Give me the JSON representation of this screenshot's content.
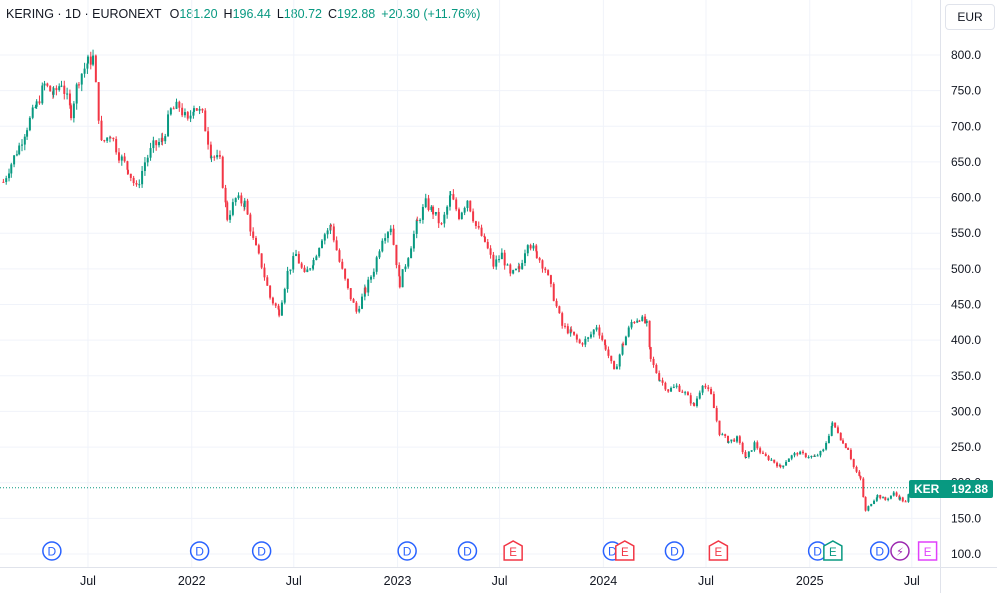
{
  "header": {
    "symbol": "KERING · 1D · EURONEXT",
    "open_label": "O",
    "open": "181.20",
    "high_label": "H",
    "high": "196.44",
    "low_label": "L",
    "low": "180.72",
    "close_label": "C",
    "close": "192.88",
    "change": "+20.30 (+11.76%)"
  },
  "currency": "EUR",
  "price_tag": {
    "symbol": "KER",
    "value": "192.88"
  },
  "colors": {
    "up": "#089981",
    "down": "#f23645",
    "dividend": "#2962ff",
    "earnings_past": "#f23645",
    "earnings_beat": "#089981",
    "earnings_future": "#e040fb",
    "split": "#9c27b0"
  },
  "chart_data": {
    "type": "candlestick",
    "title": "KERING · 1D · EURONEXT",
    "y_axis": {
      "ticks": [
        "800.0",
        "750.0",
        "700.0",
        "650.0",
        "600.0",
        "550.0",
        "500.0",
        "450.0",
        "400.0",
        "350.0",
        "300.0",
        "250.0",
        "200.0",
        "150.0",
        "100.0"
      ],
      "range": [
        80,
        830
      ],
      "side": "right"
    },
    "x_axis": {
      "ticks": [
        "Jul",
        "2022",
        "Jul",
        "2023",
        "Jul",
        "2024",
        "Jul",
        "2025",
        "Jul"
      ],
      "tick_dates": [
        "2021-07-01",
        "2022-01-01",
        "2022-07-01",
        "2023-01-01",
        "2023-07-01",
        "2024-01-01",
        "2024-07-01",
        "2025-01-01",
        "2025-07-01"
      ],
      "range": [
        "2021-01-26",
        "2025-08-20"
      ]
    },
    "last_price": 192.88,
    "series": [
      {
        "values": [
          [
            "2021-02-01",
            622
          ],
          [
            "2021-02-15",
            648
          ],
          [
            "2021-03-01",
            672
          ],
          [
            "2021-03-15",
            700
          ],
          [
            "2021-04-01",
            730
          ],
          [
            "2021-04-15",
            758
          ],
          [
            "2021-05-01",
            745
          ],
          [
            "2021-05-15",
            762
          ],
          [
            "2021-06-01",
            720
          ],
          [
            "2021-06-15",
            768
          ],
          [
            "2021-07-01",
            790
          ],
          [
            "2021-07-10",
            796
          ],
          [
            "2021-07-25",
            675
          ],
          [
            "2021-08-10",
            690
          ],
          [
            "2021-08-25",
            660
          ],
          [
            "2021-09-10",
            640
          ],
          [
            "2021-09-25",
            612
          ],
          [
            "2021-10-10",
            650
          ],
          [
            "2021-10-25",
            672
          ],
          [
            "2021-11-10",
            680
          ],
          [
            "2021-11-25",
            722
          ],
          [
            "2021-12-10",
            728
          ],
          [
            "2021-12-25",
            705
          ],
          [
            "2022-01-05",
            730
          ],
          [
            "2022-01-20",
            715
          ],
          [
            "2022-02-05",
            660
          ],
          [
            "2022-02-20",
            650
          ],
          [
            "2022-03-05",
            572
          ],
          [
            "2022-03-20",
            598
          ],
          [
            "2022-04-05",
            592
          ],
          [
            "2022-04-20",
            540
          ],
          [
            "2022-05-05",
            505
          ],
          [
            "2022-05-20",
            460
          ],
          [
            "2022-06-05",
            440
          ],
          [
            "2022-06-20",
            495
          ],
          [
            "2022-07-05",
            520
          ],
          [
            "2022-07-20",
            490
          ],
          [
            "2022-08-05",
            512
          ],
          [
            "2022-08-20",
            545
          ],
          [
            "2022-09-05",
            560
          ],
          [
            "2022-09-20",
            510
          ],
          [
            "2022-10-05",
            470
          ],
          [
            "2022-10-20",
            440
          ],
          [
            "2022-11-05",
            470
          ],
          [
            "2022-11-20",
            500
          ],
          [
            "2022-12-05",
            545
          ],
          [
            "2022-12-20",
            560
          ],
          [
            "2023-01-05",
            480
          ],
          [
            "2023-01-20",
            520
          ],
          [
            "2023-02-05",
            565
          ],
          [
            "2023-02-20",
            592
          ],
          [
            "2023-03-05",
            580
          ],
          [
            "2023-03-20",
            560
          ],
          [
            "2023-04-05",
            602
          ],
          [
            "2023-04-20",
            575
          ],
          [
            "2023-05-05",
            598
          ],
          [
            "2023-05-20",
            560
          ],
          [
            "2023-06-05",
            538
          ],
          [
            "2023-06-20",
            505
          ],
          [
            "2023-07-05",
            520
          ],
          [
            "2023-07-20",
            490
          ],
          [
            "2023-08-05",
            500
          ],
          [
            "2023-08-20",
            540
          ],
          [
            "2023-09-05",
            520
          ],
          [
            "2023-09-20",
            500
          ],
          [
            "2023-10-05",
            460
          ],
          [
            "2023-10-20",
            420
          ],
          [
            "2023-11-05",
            410
          ],
          [
            "2023-11-20",
            395
          ],
          [
            "2023-12-05",
            402
          ],
          [
            "2023-12-20",
            420
          ],
          [
            "2024-01-05",
            390
          ],
          [
            "2024-01-20",
            355
          ],
          [
            "2024-02-05",
            395
          ],
          [
            "2024-02-20",
            425
          ],
          [
            "2024-03-05",
            432
          ],
          [
            "2024-03-18",
            422
          ],
          [
            "2024-03-25",
            372
          ],
          [
            "2024-04-10",
            345
          ],
          [
            "2024-04-25",
            330
          ],
          [
            "2024-05-10",
            335
          ],
          [
            "2024-05-25",
            325
          ],
          [
            "2024-06-10",
            308
          ],
          [
            "2024-06-25",
            340
          ],
          [
            "2024-07-10",
            322
          ],
          [
            "2024-07-25",
            270
          ],
          [
            "2024-08-10",
            258
          ],
          [
            "2024-08-25",
            262
          ],
          [
            "2024-09-10",
            234
          ],
          [
            "2024-09-25",
            255
          ],
          [
            "2024-10-10",
            238
          ],
          [
            "2024-10-25",
            232
          ],
          [
            "2024-11-10",
            222
          ],
          [
            "2024-11-25",
            235
          ],
          [
            "2024-12-10",
            242
          ],
          [
            "2024-12-25",
            238
          ],
          [
            "2025-01-10",
            236
          ],
          [
            "2025-01-25",
            245
          ],
          [
            "2025-02-10",
            282
          ],
          [
            "2025-02-20",
            272
          ],
          [
            "2025-03-01",
            255
          ],
          [
            "2025-03-10",
            248
          ],
          [
            "2025-03-20",
            222
          ],
          [
            "2025-04-01",
            205
          ],
          [
            "2025-04-10",
            160
          ],
          [
            "2025-04-20",
            172
          ],
          [
            "2025-05-01",
            182
          ],
          [
            "2025-05-15",
            176
          ],
          [
            "2025-05-30",
            185
          ],
          [
            "2025-06-10",
            178
          ],
          [
            "2025-06-20",
            172
          ],
          [
            "2025-06-30",
            192.88
          ]
        ]
      }
    ],
    "events": [
      {
        "type": "dividend",
        "label": "D",
        "date": "2021-04-28"
      },
      {
        "type": "dividend",
        "label": "D",
        "date": "2022-01-15"
      },
      {
        "type": "dividend",
        "label": "D",
        "date": "2022-05-05"
      },
      {
        "type": "dividend",
        "label": "D",
        "date": "2023-01-18"
      },
      {
        "type": "dividend",
        "label": "D",
        "date": "2023-05-05"
      },
      {
        "type": "earnings",
        "label": "E",
        "date": "2023-07-25",
        "status": "miss"
      },
      {
        "type": "dividend",
        "label": "D",
        "date": "2024-01-17"
      },
      {
        "type": "earnings",
        "label": "E",
        "date": "2024-02-08",
        "status": "miss"
      },
      {
        "type": "dividend",
        "label": "D",
        "date": "2024-05-06"
      },
      {
        "type": "earnings",
        "label": "E",
        "date": "2024-07-23",
        "status": "miss"
      },
      {
        "type": "dividend",
        "label": "D",
        "date": "2025-01-15"
      },
      {
        "type": "earnings",
        "label": "E",
        "date": "2025-02-11",
        "status": "beat"
      },
      {
        "type": "dividend",
        "label": "D",
        "date": "2025-05-05"
      },
      {
        "type": "split",
        "label": "⚡",
        "date": "2025-06-10"
      },
      {
        "type": "earnings",
        "label": "E",
        "date": "2025-07-29",
        "status": "upcoming"
      }
    ],
    "grid": true,
    "legend": "none"
  }
}
